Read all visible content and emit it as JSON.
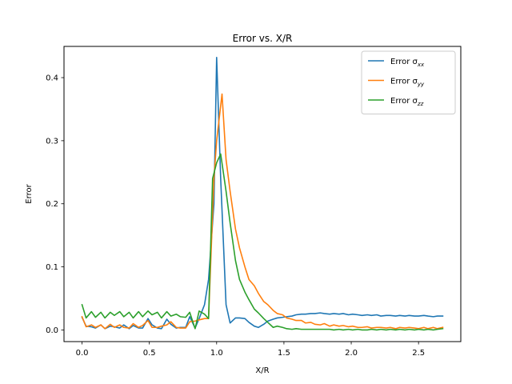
{
  "chart_data": {
    "type": "line",
    "title": "Error vs. X/R",
    "xlabel": "X/R",
    "ylabel": "Error",
    "xlim": [
      -0.134,
      2.814
    ],
    "ylim": [
      -0.0185,
      0.4495
    ],
    "xticks": [
      0.0,
      0.5,
      1.0,
      1.5,
      2.0,
      2.5
    ],
    "xtick_labels": [
      "0.0",
      "0.5",
      "1.0",
      "1.5",
      "2.0",
      "2.5"
    ],
    "yticks": [
      0.0,
      0.1,
      0.2,
      0.3,
      0.4
    ],
    "ytick_labels": [
      "0.0",
      "0.1",
      "0.2",
      "0.3",
      "0.4"
    ],
    "grid": false,
    "legend_position": "top-right",
    "series": [
      {
        "name": "Error σxx",
        "legend_main": "Error σ",
        "legend_sub": "xx",
        "color": "#1f77b4",
        "points": [
          [
            0.0,
            0.02
          ],
          [
            0.03,
            0.006
          ],
          [
            0.07,
            0.005
          ],
          [
            0.1,
            0.003
          ],
          [
            0.14,
            0.008
          ],
          [
            0.17,
            0.002
          ],
          [
            0.21,
            0.006
          ],
          [
            0.24,
            0.005
          ],
          [
            0.28,
            0.003
          ],
          [
            0.31,
            0.008
          ],
          [
            0.35,
            0.002
          ],
          [
            0.38,
            0.007
          ],
          [
            0.42,
            0.003
          ],
          [
            0.45,
            0.003
          ],
          [
            0.49,
            0.018
          ],
          [
            0.52,
            0.008
          ],
          [
            0.56,
            0.003
          ],
          [
            0.59,
            0.002
          ],
          [
            0.63,
            0.017
          ],
          [
            0.66,
            0.009
          ],
          [
            0.7,
            0.003
          ],
          [
            0.73,
            0.004
          ],
          [
            0.77,
            0.004
          ],
          [
            0.8,
            0.021
          ],
          [
            0.84,
            0.003
          ],
          [
            0.87,
            0.018
          ],
          [
            0.91,
            0.04
          ],
          [
            0.94,
            0.08
          ],
          [
            0.98,
            0.2
          ],
          [
            1.0,
            0.432
          ],
          [
            1.03,
            0.24
          ],
          [
            1.07,
            0.04
          ],
          [
            1.1,
            0.011
          ],
          [
            1.14,
            0.019
          ],
          [
            1.17,
            0.019
          ],
          [
            1.21,
            0.018
          ],
          [
            1.24,
            0.012
          ],
          [
            1.28,
            0.006
          ],
          [
            1.31,
            0.004
          ],
          [
            1.35,
            0.009
          ],
          [
            1.38,
            0.014
          ],
          [
            1.42,
            0.017
          ],
          [
            1.45,
            0.019
          ],
          [
            1.49,
            0.02
          ],
          [
            1.52,
            0.021
          ],
          [
            1.56,
            0.022
          ],
          [
            1.59,
            0.024
          ],
          [
            1.63,
            0.025
          ],
          [
            1.66,
            0.025
          ],
          [
            1.7,
            0.026
          ],
          [
            1.73,
            0.026
          ],
          [
            1.77,
            0.027
          ],
          [
            1.8,
            0.026
          ],
          [
            1.84,
            0.025
          ],
          [
            1.87,
            0.026
          ],
          [
            1.91,
            0.025
          ],
          [
            1.94,
            0.026
          ],
          [
            1.98,
            0.024
          ],
          [
            2.01,
            0.025
          ],
          [
            2.05,
            0.024
          ],
          [
            2.08,
            0.023
          ],
          [
            2.12,
            0.024
          ],
          [
            2.15,
            0.023
          ],
          [
            2.19,
            0.024
          ],
          [
            2.22,
            0.022
          ],
          [
            2.26,
            0.023
          ],
          [
            2.29,
            0.023
          ],
          [
            2.33,
            0.022
          ],
          [
            2.36,
            0.023
          ],
          [
            2.4,
            0.022
          ],
          [
            2.43,
            0.023
          ],
          [
            2.47,
            0.022
          ],
          [
            2.5,
            0.022
          ],
          [
            2.54,
            0.023
          ],
          [
            2.57,
            0.022
          ],
          [
            2.61,
            0.021
          ],
          [
            2.64,
            0.022
          ],
          [
            2.68,
            0.022
          ]
        ]
      },
      {
        "name": "Error σyy",
        "legend_main": "Error σ",
        "legend_sub": "yy",
        "color": "#ff7f0e",
        "points": [
          [
            0.0,
            0.021
          ],
          [
            0.03,
            0.005
          ],
          [
            0.07,
            0.008
          ],
          [
            0.1,
            0.004
          ],
          [
            0.14,
            0.008
          ],
          [
            0.17,
            0.002
          ],
          [
            0.21,
            0.009
          ],
          [
            0.24,
            0.004
          ],
          [
            0.28,
            0.008
          ],
          [
            0.31,
            0.004
          ],
          [
            0.35,
            0.003
          ],
          [
            0.38,
            0.01
          ],
          [
            0.42,
            0.004
          ],
          [
            0.45,
            0.007
          ],
          [
            0.49,
            0.015
          ],
          [
            0.52,
            0.004
          ],
          [
            0.56,
            0.004
          ],
          [
            0.59,
            0.006
          ],
          [
            0.63,
            0.008
          ],
          [
            0.66,
            0.013
          ],
          [
            0.7,
            0.004
          ],
          [
            0.73,
            0.003
          ],
          [
            0.77,
            0.003
          ],
          [
            0.8,
            0.013
          ],
          [
            0.84,
            0.014
          ],
          [
            0.87,
            0.016
          ],
          [
            0.91,
            0.018
          ],
          [
            0.94,
            0.018
          ],
          [
            0.98,
            0.24
          ],
          [
            1.0,
            0.3
          ],
          [
            1.04,
            0.374
          ],
          [
            1.07,
            0.27
          ],
          [
            1.1,
            0.22
          ],
          [
            1.14,
            0.16
          ],
          [
            1.17,
            0.13
          ],
          [
            1.21,
            0.1
          ],
          [
            1.24,
            0.08
          ],
          [
            1.28,
            0.07
          ],
          [
            1.31,
            0.058
          ],
          [
            1.35,
            0.045
          ],
          [
            1.38,
            0.04
          ],
          [
            1.42,
            0.031
          ],
          [
            1.45,
            0.026
          ],
          [
            1.49,
            0.024
          ],
          [
            1.52,
            0.019
          ],
          [
            1.56,
            0.017
          ],
          [
            1.59,
            0.015
          ],
          [
            1.63,
            0.015
          ],
          [
            1.66,
            0.011
          ],
          [
            1.7,
            0.012
          ],
          [
            1.73,
            0.009
          ],
          [
            1.77,
            0.008
          ],
          [
            1.8,
            0.01
          ],
          [
            1.84,
            0.006
          ],
          [
            1.87,
            0.008
          ],
          [
            1.91,
            0.006
          ],
          [
            1.94,
            0.007
          ],
          [
            1.98,
            0.005
          ],
          [
            2.01,
            0.006
          ],
          [
            2.05,
            0.004
          ],
          [
            2.08,
            0.004
          ],
          [
            2.12,
            0.005
          ],
          [
            2.15,
            0.003
          ],
          [
            2.19,
            0.004
          ],
          [
            2.22,
            0.004
          ],
          [
            2.26,
            0.003
          ],
          [
            2.29,
            0.004
          ],
          [
            2.33,
            0.002
          ],
          [
            2.36,
            0.004
          ],
          [
            2.4,
            0.003
          ],
          [
            2.43,
            0.004
          ],
          [
            2.47,
            0.003
          ],
          [
            2.5,
            0.002
          ],
          [
            2.54,
            0.004
          ],
          [
            2.57,
            0.002
          ],
          [
            2.61,
            0.004
          ],
          [
            2.64,
            0.002
          ],
          [
            2.68,
            0.004
          ]
        ]
      },
      {
        "name": "Error σzz",
        "legend_main": "Error σ",
        "legend_sub": "zz",
        "color": "#2ca02c",
        "points": [
          [
            0.0,
            0.04
          ],
          [
            0.03,
            0.019
          ],
          [
            0.07,
            0.029
          ],
          [
            0.1,
            0.02
          ],
          [
            0.14,
            0.028
          ],
          [
            0.17,
            0.019
          ],
          [
            0.21,
            0.028
          ],
          [
            0.24,
            0.023
          ],
          [
            0.28,
            0.029
          ],
          [
            0.31,
            0.021
          ],
          [
            0.35,
            0.028
          ],
          [
            0.38,
            0.019
          ],
          [
            0.42,
            0.029
          ],
          [
            0.45,
            0.021
          ],
          [
            0.49,
            0.03
          ],
          [
            0.52,
            0.024
          ],
          [
            0.56,
            0.028
          ],
          [
            0.59,
            0.019
          ],
          [
            0.63,
            0.029
          ],
          [
            0.66,
            0.022
          ],
          [
            0.7,
            0.025
          ],
          [
            0.73,
            0.021
          ],
          [
            0.77,
            0.02
          ],
          [
            0.8,
            0.028
          ],
          [
            0.84,
            0.002
          ],
          [
            0.87,
            0.03
          ],
          [
            0.91,
            0.025
          ],
          [
            0.94,
            0.018
          ],
          [
            0.97,
            0.24
          ],
          [
            1.0,
            0.265
          ],
          [
            1.03,
            0.279
          ],
          [
            1.07,
            0.22
          ],
          [
            1.1,
            0.17
          ],
          [
            1.14,
            0.11
          ],
          [
            1.17,
            0.08
          ],
          [
            1.21,
            0.06
          ],
          [
            1.24,
            0.048
          ],
          [
            1.28,
            0.033
          ],
          [
            1.31,
            0.027
          ],
          [
            1.35,
            0.018
          ],
          [
            1.38,
            0.012
          ],
          [
            1.42,
            0.004
          ],
          [
            1.45,
            0.006
          ],
          [
            1.49,
            0.004
          ],
          [
            1.52,
            0.002
          ],
          [
            1.56,
            0.001
          ],
          [
            1.59,
            0.002
          ],
          [
            1.63,
            0.001
          ],
          [
            1.66,
            0.001
          ],
          [
            1.7,
            0.001
          ],
          [
            1.73,
            0.001
          ],
          [
            1.77,
            0.001
          ],
          [
            1.8,
            0.001
          ],
          [
            1.84,
            0.001
          ],
          [
            1.87,
            0.0
          ],
          [
            1.91,
            0.001
          ],
          [
            1.94,
            0.0
          ],
          [
            1.98,
            0.001
          ],
          [
            2.01,
            0.0
          ],
          [
            2.05,
            0.001
          ],
          [
            2.08,
            0.0
          ],
          [
            2.12,
            0.0
          ],
          [
            2.15,
            0.001
          ],
          [
            2.19,
            0.0
          ],
          [
            2.22,
            0.001
          ],
          [
            2.26,
            0.0
          ],
          [
            2.29,
            0.001
          ],
          [
            2.33,
            0.0
          ],
          [
            2.36,
            0.001
          ],
          [
            2.4,
            0.0
          ],
          [
            2.43,
            0.001
          ],
          [
            2.47,
            0.0
          ],
          [
            2.5,
            0.001
          ],
          [
            2.54,
            0.0
          ],
          [
            2.57,
            0.001
          ],
          [
            2.61,
            0.0
          ],
          [
            2.64,
            0.001
          ],
          [
            2.68,
            0.002
          ]
        ]
      }
    ]
  }
}
